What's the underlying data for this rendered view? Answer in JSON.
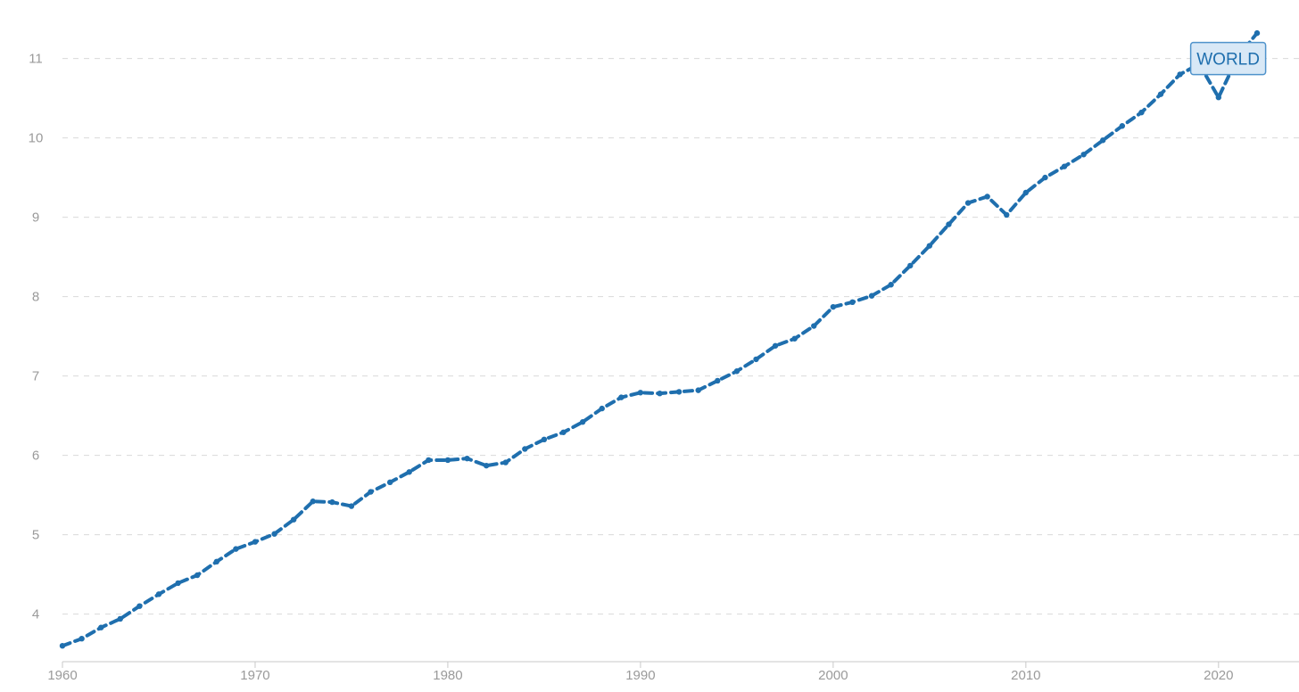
{
  "chart_data": {
    "type": "line",
    "title": "",
    "xlabel": "",
    "ylabel": "",
    "xlim": [
      1960,
      2022
    ],
    "ylim": [
      3.4,
      11.4
    ],
    "grid": true,
    "x_ticks": [
      "1960",
      "1970",
      "1980",
      "1990",
      "2000",
      "2010",
      "2020"
    ],
    "y_ticks": [
      "4",
      "5",
      "6",
      "7",
      "8",
      "9",
      "10",
      "11"
    ],
    "series": [
      {
        "name": "WORLD",
        "color": "#1f6fae",
        "x": [
          1960,
          1961,
          1962,
          1963,
          1964,
          1965,
          1966,
          1967,
          1968,
          1969,
          1970,
          1971,
          1972,
          1973,
          1974,
          1975,
          1976,
          1977,
          1978,
          1979,
          1980,
          1981,
          1982,
          1983,
          1984,
          1985,
          1986,
          1987,
          1988,
          1989,
          1990,
          1991,
          1992,
          1993,
          1994,
          1995,
          1996,
          1997,
          1998,
          1999,
          2000,
          2001,
          2002,
          2003,
          2004,
          2005,
          2006,
          2007,
          2008,
          2009,
          2010,
          2011,
          2012,
          2013,
          2014,
          2015,
          2016,
          2017,
          2018,
          2019,
          2020,
          2021,
          2022
        ],
        "values": [
          3.6,
          3.69,
          3.83,
          3.94,
          4.1,
          4.25,
          4.39,
          4.49,
          4.66,
          4.82,
          4.91,
          5.01,
          5.19,
          5.42,
          5.41,
          5.36,
          5.54,
          5.66,
          5.79,
          5.94,
          5.94,
          5.96,
          5.87,
          5.91,
          6.08,
          6.2,
          6.29,
          6.42,
          6.59,
          6.73,
          6.79,
          6.78,
          6.8,
          6.82,
          6.94,
          7.06,
          7.21,
          7.38,
          7.47,
          7.63,
          7.87,
          7.93,
          8.01,
          8.15,
          8.39,
          8.64,
          8.91,
          9.18,
          9.26,
          9.03,
          9.31,
          9.5,
          9.64,
          9.79,
          9.97,
          10.15,
          10.32,
          10.55,
          10.8,
          10.93,
          10.51,
          11.02,
          11.32
        ]
      }
    ],
    "annotations": [
      {
        "text": "WORLD",
        "x": 2020.5,
        "y": 11.0
      }
    ]
  }
}
